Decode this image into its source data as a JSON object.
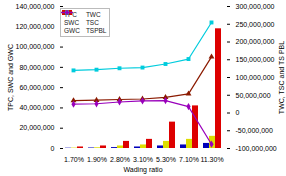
{
  "chart_data": {
    "type": "bar",
    "xlabel": "Wading ratio",
    "ylabel": "TPC, SWC and GWC",
    "y2label": "TWC, TSC and TS PBL",
    "categories": [
      "1.70%",
      "1.90%",
      "2.80%",
      "3.10%",
      "5.30%",
      "7.10%",
      "11.30%"
    ],
    "series": [
      {
        "name": "TPC",
        "type": "bar",
        "color": "#0000BB",
        "values": [
          300000,
          500000,
          900000,
          1500000,
          2500000,
          3500000,
          5000000
        ]
      },
      {
        "name": "SWC",
        "type": "bar",
        "color": "#DDDD00",
        "values": [
          400000,
          700000,
          2500000,
          3500000,
          7000000,
          9000000,
          12000000
        ]
      },
      {
        "name": "GWC",
        "type": "bar",
        "color": "#DD0000",
        "values": [
          1500000,
          2500000,
          7000000,
          9000000,
          26000000,
          42000000,
          118000000
        ]
      },
      {
        "name": "TWC",
        "type": "line",
        "axis": "y2",
        "color": "#8B1A00",
        "marker": "triangle",
        "values": [
          35000000,
          36000000,
          38000000,
          39500000,
          44000000,
          54000000,
          158000000
        ]
      },
      {
        "name": "TSC",
        "type": "line",
        "axis": "y2",
        "color": "#00CCDD",
        "marker": "square",
        "values": [
          120000000,
          122000000,
          126000000,
          128000000,
          138000000,
          152000000,
          255000000
        ]
      },
      {
        "name": "TSPBL",
        "type": "line",
        "axis": "y2",
        "color": "#9900BB",
        "marker": "diamond",
        "values": [
          25000000,
          26000000,
          31000000,
          34000000,
          35000000,
          18000000,
          -88000000
        ]
      }
    ],
    "ylim": [
      0,
      140000000
    ],
    "yticks": [
      0,
      {
        "value": 20000000,
        "label": "20,000,000"
      },
      {
        "value": 40000000,
        "label": "40,000,000"
      },
      {
        "value": 60000000,
        "label": "60,000,000"
      },
      {
        "value": 80000000,
        "label": "80,000,000"
      },
      {
        "value": 100000000,
        "label": "100,000,000"
      },
      {
        "value": 120000000,
        "label": "120,000,000"
      },
      {
        "value": 140000000,
        "label": "140,000,000"
      }
    ],
    "y2lim": [
      -100000000,
      300000000
    ],
    "y2ticks": [
      {
        "value": -100000000,
        "label": "-100,000,000"
      },
      {
        "value": -50000000,
        "label": "-50,000,000"
      },
      0,
      {
        "value": 50000000,
        "label": "50,000,000"
      },
      {
        "value": 100000000,
        "label": "100,000,000"
      },
      {
        "value": 150000000,
        "label": "150,000,000"
      },
      {
        "value": 200000000,
        "label": "200,000,000"
      },
      {
        "value": 250000000,
        "label": "250,000,000"
      },
      {
        "value": 300000000,
        "label": "300,000,000"
      }
    ],
    "legend": "upper left"
  }
}
